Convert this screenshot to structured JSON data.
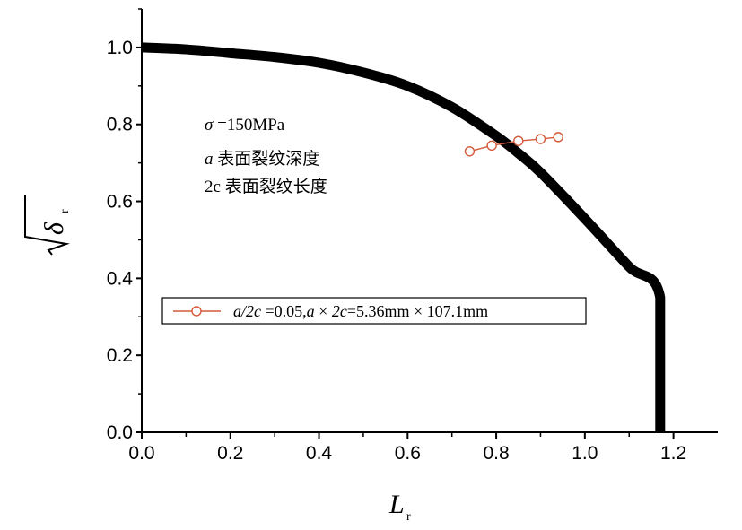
{
  "chart_data": {
    "type": "line",
    "xlabel": "L",
    "xlabel_sub": "r",
    "ylabel": "δ",
    "ylabel_sub": "r",
    "xlim": [
      0.0,
      1.3
    ],
    "ylim": [
      0.0,
      1.1
    ],
    "xticks": [
      "0.0",
      "0.2",
      "0.4",
      "0.6",
      "0.8",
      "1.0",
      "1.2"
    ],
    "xtick_values": [
      0.0,
      0.2,
      0.4,
      0.6,
      0.8,
      1.0,
      1.2
    ],
    "yticks": [
      "0.0",
      "0.2",
      "0.4",
      "0.6",
      "0.8",
      "1.0"
    ],
    "ytick_values": [
      0.0,
      0.2,
      0.4,
      0.6,
      0.8,
      1.0
    ],
    "grid": false,
    "legend_position": "middle-left",
    "annotations": {
      "line1_sym": "σ",
      "line1_rest": " =150MPa",
      "line2_sym": "a",
      "line2_rest": " 表面裂纹深度",
      "line3_sym": "2c",
      "line3_rest": " 表面裂纹长度"
    },
    "series": [
      {
        "type": "curve",
        "color": "#000000",
        "x": [
          0.0,
          0.1,
          0.2,
          0.3,
          0.4,
          0.5,
          0.6,
          0.7,
          0.8,
          0.85,
          0.9,
          1.0,
          1.1,
          1.17,
          1.17
        ],
        "y": [
          1.0,
          0.995,
          0.985,
          0.975,
          0.96,
          0.935,
          0.9,
          0.845,
          0.77,
          0.725,
          0.675,
          0.555,
          0.43,
          0.35,
          0.0
        ]
      },
      {
        "name": "a/2c =0.05,a × 2c=5.36mm × 107.1mm",
        "type": "line-marker",
        "color": "#d35a3a",
        "x": [
          0.74,
          0.79,
          0.85,
          0.9,
          0.94
        ],
        "y": [
          0.73,
          0.745,
          0.757,
          0.762,
          0.767
        ]
      }
    ],
    "legend": {
      "sym1": "a/2c",
      "text1": " =0.05,",
      "sym2": "a",
      "text2": " × ",
      "sym3": "2c",
      "text3": "=5.36mm × 107.1mm"
    }
  }
}
